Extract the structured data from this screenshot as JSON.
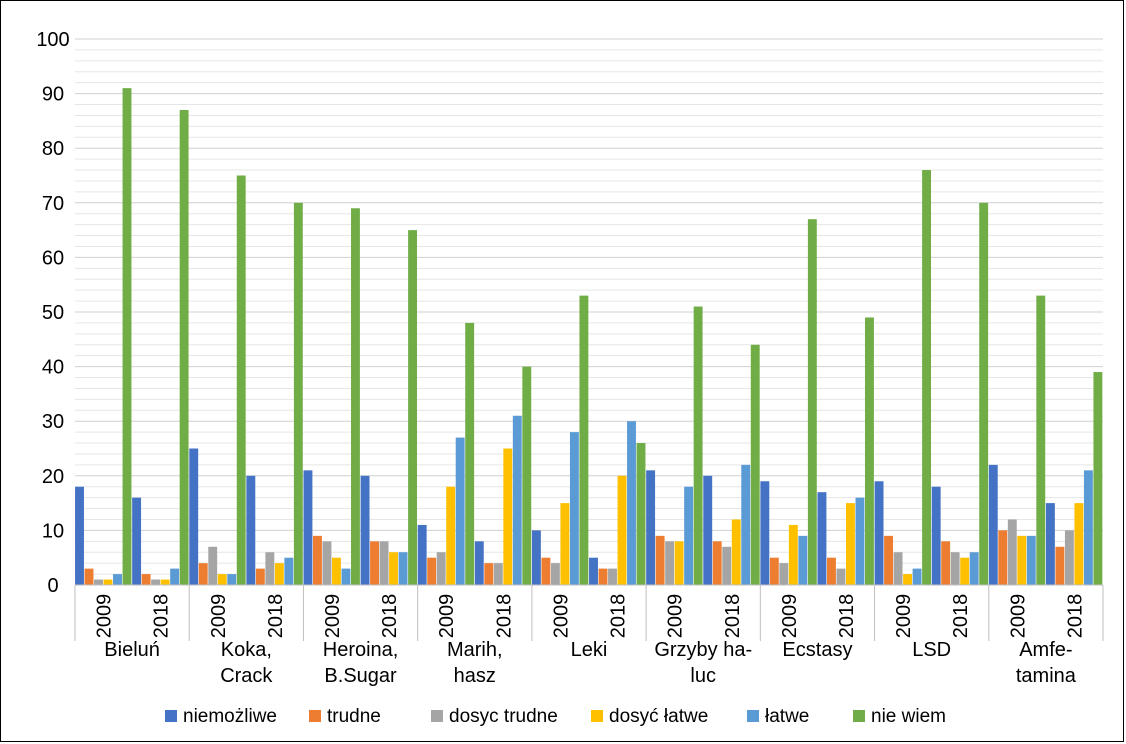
{
  "chart_data": {
    "type": "bar",
    "title": "",
    "xlabel": "",
    "ylabel": "",
    "ylim": [
      0,
      100
    ],
    "yticks": [
      0,
      10,
      20,
      30,
      40,
      50,
      60,
      70,
      80,
      90,
      100
    ],
    "grid": true,
    "legend_position": "bottom",
    "groups": [
      {
        "label": [
          "Bieluń"
        ],
        "years": [
          "2009",
          "2018"
        ]
      },
      {
        "label": [
          "Koka,",
          "Crack"
        ],
        "years": [
          "2009",
          "2018"
        ]
      },
      {
        "label": [
          "Heroina,",
          "B.Sugar"
        ],
        "years": [
          "2009",
          "2018"
        ]
      },
      {
        "label": [
          "Marih,",
          "hasz"
        ],
        "years": [
          "2009",
          "2018"
        ]
      },
      {
        "label": [
          "Leki"
        ],
        "years": [
          "2009",
          "2018"
        ]
      },
      {
        "label": [
          "Grzyby ha-",
          "luc"
        ],
        "years": [
          "2009",
          "2018"
        ]
      },
      {
        "label": [
          "Ecstasy"
        ],
        "years": [
          "2009",
          "2018"
        ]
      },
      {
        "label": [
          "LSD"
        ],
        "years": [
          "2009",
          "2018"
        ]
      },
      {
        "label": [
          "Amfe-",
          "tamina"
        ],
        "years": [
          "2009",
          "2018"
        ]
      }
    ],
    "series": [
      {
        "name": "niemożliwe",
        "color": "#4472C4",
        "values": [
          18,
          16,
          25,
          20,
          21,
          20,
          11,
          8,
          10,
          5,
          21,
          20,
          19,
          17,
          19,
          18,
          22,
          15
        ]
      },
      {
        "name": "trudne",
        "color": "#ED7D31",
        "values": [
          3,
          2,
          4,
          3,
          9,
          8,
          5,
          4,
          5,
          3,
          9,
          8,
          5,
          5,
          9,
          8,
          10,
          7
        ]
      },
      {
        "name": "dosyc trudne",
        "color": "#A5A5A5",
        "values": [
          1,
          1,
          7,
          6,
          8,
          8,
          6,
          4,
          4,
          3,
          8,
          7,
          4,
          3,
          6,
          6,
          12,
          10
        ]
      },
      {
        "name": "dosyć łatwe",
        "color": "#FFC000",
        "values": [
          1,
          1,
          2,
          4,
          5,
          6,
          18,
          25,
          15,
          20,
          8,
          12,
          11,
          15,
          2,
          5,
          9,
          15
        ]
      },
      {
        "name": "łatwe",
        "color": "#5B9BD5",
        "values": [
          2,
          3,
          2,
          5,
          3,
          6,
          27,
          31,
          28,
          30,
          18,
          22,
          9,
          16,
          3,
          6,
          9,
          21
        ]
      },
      {
        "name": "nie wiem",
        "color": "#70AD47",
        "values": [
          91,
          87,
          75,
          70,
          69,
          65,
          48,
          40,
          53,
          26,
          51,
          44,
          67,
          49,
          76,
          70,
          53,
          39
        ]
      }
    ]
  }
}
